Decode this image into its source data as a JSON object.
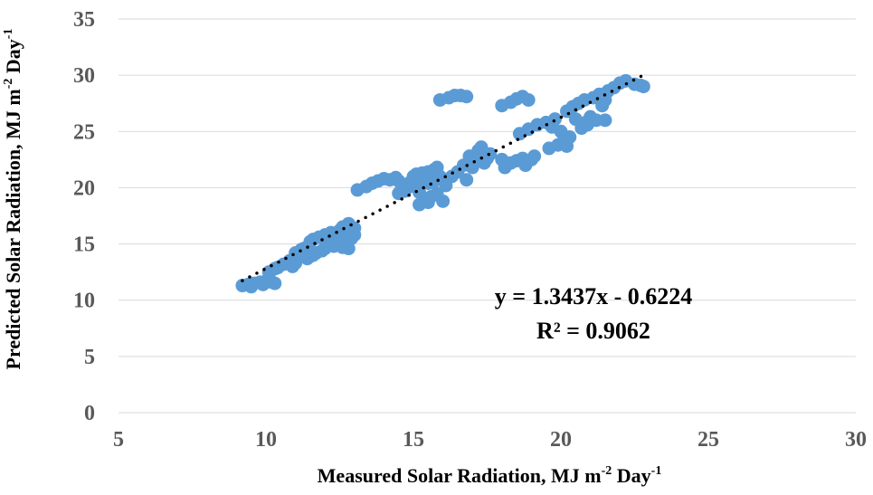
{
  "chart_data": {
    "type": "scatter",
    "title": "",
    "xlabel": {
      "text": "Measured Solar Radiation, MJ m",
      "sup1": "-2",
      "mid": " Day",
      "sup2": "-1"
    },
    "ylabel": {
      "text": "Predicted Solar Radiation, MJ m",
      "sup1": "-2",
      "mid": " Day",
      "sup2": "-1"
    },
    "xlim": [
      5,
      30
    ],
    "ylim": [
      0,
      35
    ],
    "xticks": [
      "5",
      "10",
      "15",
      "20",
      "25",
      "30"
    ],
    "yticks": [
      "0",
      "5",
      "10",
      "15",
      "20",
      "25",
      "30",
      "35"
    ],
    "grid": "horizontal",
    "legend": "none",
    "marker_color": "#5B9BD5",
    "trendline": {
      "slope": 1.3437,
      "intercept": -0.6224,
      "x_range": [
        9.2,
        22.8
      ],
      "style": "dotted",
      "color": "#000000"
    },
    "annotations": {
      "equation": "y = 1.3437x - 0.6224",
      "r2": "R² = 0.9062"
    },
    "points": [
      [
        9.2,
        11.3
      ],
      [
        9.4,
        11.4
      ],
      [
        9.6,
        11.5
      ],
      [
        9.8,
        11.6
      ],
      [
        10.0,
        11.7
      ],
      [
        10.2,
        11.6
      ],
      [
        10.3,
        11.5
      ],
      [
        9.5,
        11.2
      ],
      [
        9.9,
        11.4
      ],
      [
        10.1,
        12.0
      ],
      [
        10.1,
        12.5
      ],
      [
        10.3,
        12.8
      ],
      [
        10.4,
        12.9
      ],
      [
        10.6,
        13.2
      ],
      [
        10.8,
        13.5
      ],
      [
        10.9,
        13.0
      ],
      [
        11.0,
        13.3
      ],
      [
        11.1,
        13.8
      ],
      [
        11.0,
        14.2
      ],
      [
        11.2,
        14.5
      ],
      [
        11.3,
        14.6
      ],
      [
        11.4,
        13.7
      ],
      [
        11.5,
        13.9
      ],
      [
        11.6,
        14.0
      ],
      [
        11.7,
        14.2
      ],
      [
        11.5,
        15.2
      ],
      [
        11.6,
        15.4
      ],
      [
        11.8,
        15.6
      ],
      [
        11.9,
        14.4
      ],
      [
        12.0,
        14.6
      ],
      [
        12.1,
        15.0
      ],
      [
        12.0,
        15.8
      ],
      [
        12.2,
        16.0
      ],
      [
        12.3,
        14.8
      ],
      [
        12.4,
        15.5
      ],
      [
        12.5,
        16.2
      ],
      [
        12.6,
        14.7
      ],
      [
        12.7,
        15.8
      ],
      [
        12.6,
        16.5
      ],
      [
        12.8,
        16.8
      ],
      [
        12.8,
        14.6
      ],
      [
        12.9,
        15.5
      ],
      [
        12.9,
        16.2
      ],
      [
        13.0,
        16.4
      ],
      [
        13.0,
        15.8
      ],
      [
        13.1,
        19.8
      ],
      [
        13.4,
        20.1
      ],
      [
        13.6,
        20.4
      ],
      [
        13.8,
        20.6
      ],
      [
        14.0,
        20.8
      ],
      [
        14.2,
        20.7
      ],
      [
        14.4,
        20.9
      ],
      [
        14.5,
        20.6
      ],
      [
        14.6,
        20.3
      ],
      [
        14.5,
        19.5
      ],
      [
        14.7,
        19.7
      ],
      [
        14.8,
        20.0
      ],
      [
        14.9,
        20.5
      ],
      [
        15.0,
        20.8
      ],
      [
        15.0,
        21.0
      ],
      [
        15.1,
        20.2
      ],
      [
        15.1,
        21.2
      ],
      [
        15.2,
        19.6
      ],
      [
        15.2,
        18.5
      ],
      [
        15.3,
        20.9
      ],
      [
        15.3,
        21.3
      ],
      [
        15.4,
        19.0
      ],
      [
        15.5,
        20.4
      ],
      [
        15.5,
        21.4
      ],
      [
        15.5,
        18.7
      ],
      [
        15.6,
        19.2
      ],
      [
        15.7,
        20.6
      ],
      [
        15.7,
        21.6
      ],
      [
        15.8,
        21.8
      ],
      [
        15.8,
        19.5
      ],
      [
        15.9,
        21.0
      ],
      [
        16.0,
        18.8
      ],
      [
        16.1,
        20.2
      ],
      [
        16.2,
        28.0
      ],
      [
        16.4,
        28.2
      ],
      [
        16.6,
        28.2
      ],
      [
        16.8,
        28.1
      ],
      [
        15.9,
        27.8
      ],
      [
        16.3,
        21.0
      ],
      [
        16.5,
        21.4
      ],
      [
        16.7,
        22.0
      ],
      [
        16.8,
        20.7
      ],
      [
        16.9,
        22.8
      ],
      [
        17.0,
        21.8
      ],
      [
        17.1,
        22.3
      ],
      [
        17.2,
        23.3
      ],
      [
        17.3,
        23.6
      ],
      [
        17.4,
        22.2
      ],
      [
        17.5,
        22.6
      ],
      [
        17.6,
        23.0
      ],
      [
        18.0,
        27.3
      ],
      [
        18.3,
        27.6
      ],
      [
        18.5,
        27.9
      ],
      [
        18.7,
        28.1
      ],
      [
        18.9,
        27.8
      ],
      [
        18.0,
        22.5
      ],
      [
        18.1,
        21.8
      ],
      [
        18.3,
        22.2
      ],
      [
        18.5,
        22.4
      ],
      [
        18.7,
        22.6
      ],
      [
        18.8,
        22.0
      ],
      [
        19.0,
        22.5
      ],
      [
        19.1,
        22.8
      ],
      [
        18.6,
        24.8
      ],
      [
        18.9,
        25.2
      ],
      [
        19.2,
        25.6
      ],
      [
        19.5,
        25.8
      ],
      [
        19.7,
        25.4
      ],
      [
        19.6,
        23.5
      ],
      [
        19.9,
        23.8
      ],
      [
        20.1,
        24.2
      ],
      [
        20.2,
        23.7
      ],
      [
        20.3,
        24.5
      ],
      [
        20.0,
        25.0
      ],
      [
        20.2,
        26.8
      ],
      [
        20.4,
        27.2
      ],
      [
        20.5,
        26.1
      ],
      [
        20.6,
        27.5
      ],
      [
        20.8,
        27.8
      ],
      [
        20.9,
        25.6
      ],
      [
        21.0,
        26.3
      ],
      [
        21.1,
        28.0
      ],
      [
        21.2,
        26.0
      ],
      [
        21.3,
        28.3
      ],
      [
        21.4,
        27.3
      ],
      [
        21.6,
        28.6
      ],
      [
        21.8,
        28.9
      ],
      [
        22.0,
        29.3
      ],
      [
        22.2,
        29.5
      ],
      [
        22.5,
        29.2
      ],
      [
        22.7,
        29.1
      ],
      [
        22.8,
        29.0
      ],
      [
        21.5,
        27.8
      ],
      [
        20.7,
        25.3
      ],
      [
        19.8,
        26.1
      ],
      [
        20.9,
        25.9
      ],
      [
        21.5,
        26.0
      ]
    ]
  }
}
